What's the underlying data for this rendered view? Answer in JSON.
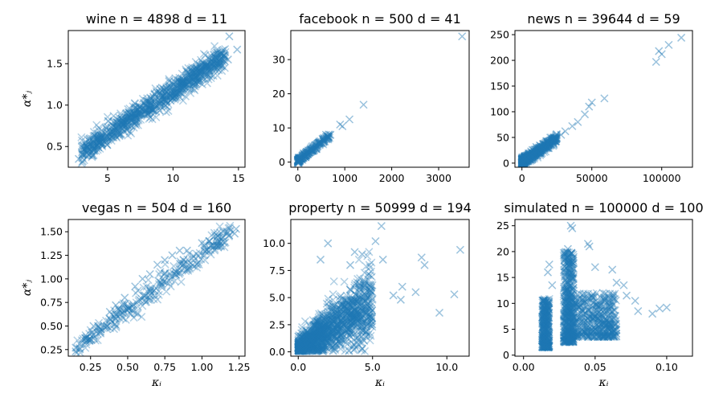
{
  "chart_data": [
    {
      "type": "scatter",
      "name": "wine",
      "title": "wine n = 4898 d = 11",
      "xlabel": "",
      "ylabel": "α*ⱼ",
      "xlim": [
        2,
        15.5
      ],
      "ylim": [
        0.25,
        1.9
      ],
      "xticks": [
        5,
        10,
        15
      ],
      "yticks": [
        0.5,
        1.0,
        1.5
      ],
      "ytick_labels": [
        "0.5",
        "1.0",
        "1.5"
      ],
      "color": "#1f77b4",
      "trend": {
        "x0": 3,
        "y0": 0.42,
        "x1": 14,
        "y1": 1.6,
        "noise": 0.07
      },
      "points": [
        [
          2.8,
          0.35
        ],
        [
          3.4,
          0.42
        ],
        [
          4.0,
          0.48
        ],
        [
          4.5,
          0.55
        ],
        [
          5.0,
          0.62
        ],
        [
          5.5,
          0.7
        ],
        [
          6.0,
          0.78
        ],
        [
          6.5,
          0.85
        ],
        [
          7.0,
          0.9
        ],
        [
          7.5,
          0.98
        ],
        [
          8.0,
          1.05
        ],
        [
          8.5,
          1.1
        ],
        [
          9.0,
          1.15
        ],
        [
          9.5,
          1.2
        ],
        [
          10.0,
          1.25
        ],
        [
          10.5,
          1.28
        ],
        [
          11.0,
          1.32
        ],
        [
          11.5,
          1.38
        ],
        [
          12.0,
          1.42
        ],
        [
          12.5,
          1.45
        ],
        [
          13.2,
          1.5
        ],
        [
          13.5,
          1.48
        ],
        [
          14.2,
          1.55
        ],
        [
          14.9,
          1.67
        ],
        [
          14.3,
          1.83
        ]
      ],
      "n_background": 900
    },
    {
      "type": "scatter",
      "name": "facebook",
      "title": "facebook n = 500 d = 41",
      "xlabel": "",
      "ylabel": "",
      "xlim": [
        -150,
        3650
      ],
      "ylim": [
        -1.5,
        38.5
      ],
      "xticks": [
        0,
        1000,
        2000,
        3000
      ],
      "yticks": [
        0,
        10,
        20,
        30
      ],
      "ytick_labels": [
        "0",
        "10",
        "20",
        "30"
      ],
      "color": "#1f77b4",
      "trend": {
        "x0": 0,
        "y0": 0.3,
        "x1": 700,
        "y1": 8,
        "noise": 0.4
      },
      "points": [
        [
          50,
          0.5
        ],
        [
          100,
          1.2
        ],
        [
          150,
          1.8
        ],
        [
          200,
          2.5
        ],
        [
          300,
          3.5
        ],
        [
          400,
          4.8
        ],
        [
          500,
          5.8
        ],
        [
          550,
          7.0
        ],
        [
          600,
          8.0
        ],
        [
          650,
          7.5
        ],
        [
          900,
          11.0
        ],
        [
          950,
          10.5
        ],
        [
          1100,
          12.5
        ],
        [
          1400,
          16.8
        ],
        [
          3500,
          36.8
        ]
      ],
      "n_background": 250
    },
    {
      "type": "scatter",
      "name": "news",
      "title": "news n = 39644 d = 59",
      "xlabel": "",
      "ylabel": "",
      "xlim": [
        -5000,
        122000
      ],
      "ylim": [
        -8,
        258
      ],
      "xticks": [
        0,
        50000,
        100000
      ],
      "yticks": [
        0,
        50,
        100,
        150,
        200,
        250
      ],
      "ytick_labels": [
        "0",
        "50",
        "100",
        "150",
        "200",
        "250"
      ],
      "color": "#1f77b4",
      "trend": {
        "x0": 0,
        "y0": 2,
        "x1": 25000,
        "y1": 48,
        "noise": 4
      },
      "points": [
        [
          28000,
          55
        ],
        [
          31000,
          62
        ],
        [
          36000,
          72
        ],
        [
          40000,
          80
        ],
        [
          45000,
          95
        ],
        [
          48000,
          110
        ],
        [
          50000,
          118
        ],
        [
          59000,
          126
        ],
        [
          96000,
          197
        ],
        [
          98000,
          218
        ],
        [
          100000,
          212
        ],
        [
          105000,
          230
        ],
        [
          114000,
          244
        ]
      ],
      "n_background": 700
    },
    {
      "type": "scatter",
      "name": "vegas",
      "title": "vegas n = 504 d = 160",
      "xlabel": "κᵢ",
      "ylabel": "α*ⱼ",
      "xlim": [
        0.1,
        1.29
      ],
      "ylim": [
        0.18,
        1.63
      ],
      "xticks": [
        0.25,
        0.5,
        0.75,
        1.0,
        1.25
      ],
      "xtick_labels": [
        "0.25",
        "0.50",
        "0.75",
        "1.00",
        "1.25"
      ],
      "yticks": [
        0.25,
        0.5,
        0.75,
        1.0,
        1.25,
        1.5
      ],
      "ytick_labels": [
        "0.25",
        "0.50",
        "0.75",
        "1.00",
        "1.25",
        "1.50"
      ],
      "color": "#1f77b4",
      "trend": {
        "x0": 0.15,
        "y0": 0.25,
        "x1": 1.2,
        "y1": 1.5,
        "noise": 0.06
      },
      "points": [
        [
          0.15,
          0.23
        ],
        [
          0.15,
          0.27
        ],
        [
          0.27,
          0.5
        ],
        [
          0.3,
          0.5
        ],
        [
          0.38,
          0.65
        ],
        [
          0.42,
          0.72
        ],
        [
          0.48,
          0.8
        ],
        [
          0.55,
          0.92
        ],
        [
          0.6,
          1.0
        ],
        [
          0.65,
          1.05
        ],
        [
          0.7,
          1.15
        ],
        [
          0.75,
          1.2
        ],
        [
          0.8,
          1.25
        ],
        [
          0.85,
          1.3
        ],
        [
          0.9,
          1.3
        ],
        [
          1.0,
          1.38
        ],
        [
          1.05,
          1.4
        ],
        [
          1.1,
          1.35
        ],
        [
          1.22,
          1.48
        ],
        [
          1.23,
          1.53
        ]
      ],
      "n_background": 300
    },
    {
      "type": "scatter",
      "name": "property",
      "title": "property n = 50999 d = 194",
      "xlabel": "κᵢ",
      "ylabel": "",
      "xlim": [
        -0.5,
        11.5
      ],
      "ylim": [
        -0.4,
        12.2
      ],
      "xticks": [
        0,
        5,
        10
      ],
      "xtick_labels": [
        "0.0",
        "5.0",
        "10.0"
      ],
      "yticks": [
        0,
        2.5,
        5.0,
        7.5,
        10.0
      ],
      "ytick_labels": [
        "0.0",
        "2.5",
        "5.0",
        "7.5",
        "10.0"
      ],
      "color": "#1f77b4",
      "trend": {
        "x0": 0,
        "y0": 0.3,
        "x1": 5,
        "y1": 4.5,
        "noise": 1.5
      },
      "points": [
        [
          5.6,
          11.6
        ],
        [
          5.2,
          10.2
        ],
        [
          4.3,
          9.0
        ],
        [
          5.7,
          8.5
        ],
        [
          8.3,
          8.7
        ],
        [
          8.5,
          8.0
        ],
        [
          10.9,
          9.4
        ],
        [
          10.5,
          5.3
        ],
        [
          9.5,
          3.6
        ],
        [
          7.9,
          5.5
        ],
        [
          7.0,
          6.0
        ],
        [
          6.4,
          5.2
        ],
        [
          6.9,
          4.8
        ],
        [
          2.0,
          10.0
        ],
        [
          3.8,
          9.2
        ],
        [
          1.5,
          8.5
        ],
        [
          3.5,
          8.0
        ]
      ],
      "n_background": 1400
    },
    {
      "type": "scatter",
      "name": "simulated",
      "title": "simulated n = 100000 d = 100",
      "xlabel": "κᵢ",
      "ylabel": "",
      "xlim": [
        -0.006,
        0.118
      ],
      "ylim": [
        -0.2,
        26.2
      ],
      "xticks": [
        0,
        0.05,
        0.1
      ],
      "xtick_labels": [
        "0.00",
        "0.05",
        "0.10"
      ],
      "yticks": [
        0,
        5,
        10,
        15,
        20,
        25
      ],
      "ytick_labels": [
        "0",
        "5",
        "10",
        "15",
        "20",
        "25"
      ],
      "color": "#1f77b4",
      "clusters": [
        {
          "x_min": 0.013,
          "x_max": 0.018,
          "y_min": 1.5,
          "y_max": 11,
          "n": 420
        },
        {
          "x_min": 0.028,
          "x_max": 0.035,
          "y_min": 2.5,
          "y_max": 20,
          "n": 520
        },
        {
          "x_min": 0.035,
          "x_max": 0.065,
          "y_min": 3.5,
          "y_max": 12,
          "n": 480
        }
      ],
      "points": [
        [
          0.018,
          17.5
        ],
        [
          0.017,
          16.0
        ],
        [
          0.02,
          13.5
        ],
        [
          0.033,
          25.0
        ],
        [
          0.034,
          24.5
        ],
        [
          0.031,
          20.5
        ],
        [
          0.045,
          21.5
        ],
        [
          0.046,
          21.0
        ],
        [
          0.05,
          17.0
        ],
        [
          0.062,
          16.5
        ],
        [
          0.072,
          11.5
        ],
        [
          0.078,
          10.5
        ],
        [
          0.08,
          8.5
        ],
        [
          0.09,
          8.0
        ],
        [
          0.095,
          9.0
        ],
        [
          0.1,
          9.2
        ],
        [
          0.07,
          13.5
        ],
        [
          0.065,
          14.0
        ]
      ]
    }
  ]
}
